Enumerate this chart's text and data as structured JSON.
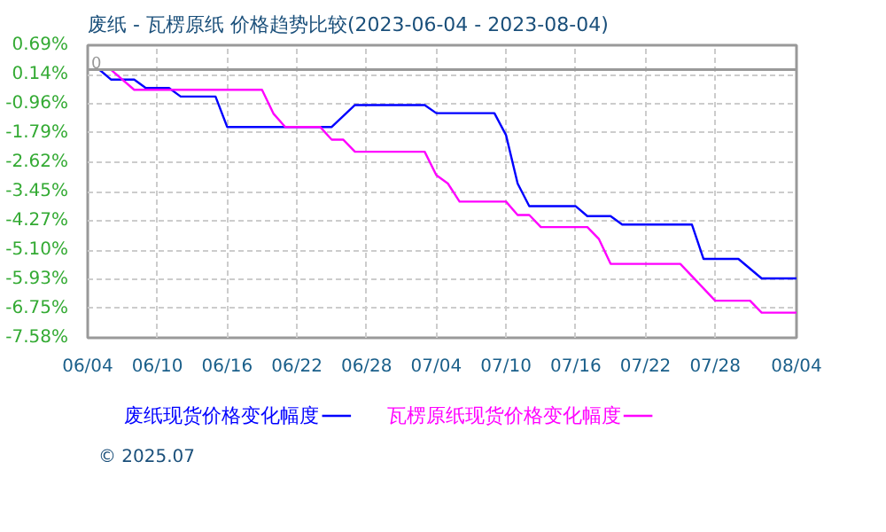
{
  "chart_data": {
    "type": "step",
    "title": "废纸 - 瓦楞原纸 价格趋势比较(2023-06-04 - 2023-08-04)",
    "xlim": [
      "2023-06-04",
      "2023-08-04"
    ],
    "xticks": [
      {
        "value": "2023-06-04",
        "label": "06/04"
      },
      {
        "value": "2023-06-10",
        "label": "06/10"
      },
      {
        "value": "2023-06-16",
        "label": "06/16"
      },
      {
        "value": "2023-06-22",
        "label": "06/22"
      },
      {
        "value": "2023-06-28",
        "label": "06/28"
      },
      {
        "value": "2023-07-04",
        "label": "07/04"
      },
      {
        "value": "2023-07-10",
        "label": "07/10"
      },
      {
        "value": "2023-07-16",
        "label": "07/16"
      },
      {
        "value": "2023-07-22",
        "label": "07/22"
      },
      {
        "value": "2023-07-28",
        "label": "07/28"
      },
      {
        "value": "2023-08-04",
        "label": "08/04"
      }
    ],
    "ylim": [
      -7.58,
      0.69
    ],
    "yticks": [
      {
        "value": 0.69,
        "label": "0.69%"
      },
      {
        "value": -0.14,
        "label": "0.14%"
      },
      {
        "value": -0.96,
        "label": "-0.96%"
      },
      {
        "value": -1.79,
        "label": "-1.79%"
      },
      {
        "value": -2.62,
        "label": "-2.62%"
      },
      {
        "value": -3.45,
        "label": "-3.45%"
      },
      {
        "value": -4.27,
        "label": "-4.27%"
      },
      {
        "value": -5.1,
        "label": "-5.10%"
      },
      {
        "value": -5.93,
        "label": "-5.93%"
      },
      {
        "value": -6.75,
        "label": "-6.75%"
      },
      {
        "value": -7.58,
        "label": "-7.58%"
      }
    ],
    "grid": true,
    "legend": "bottom",
    "line_style": "solid",
    "ref_lines": [
      {
        "axis": "y",
        "value": 0,
        "label": "0",
        "color": "#999999",
        "line_style": "solid"
      }
    ],
    "annotations": [
      "© 2025.07"
    ],
    "series": [
      {
        "name": "废纸现货价格变化幅度",
        "color": "#0000ff",
        "x": [
          "2023-06-04",
          "2023-06-05",
          "2023-06-06",
          "2023-06-08",
          "2023-06-09",
          "2023-06-11",
          "2023-06-12",
          "2023-06-15",
          "2023-06-16",
          "2023-06-25",
          "2023-06-27",
          "2023-07-03",
          "2023-07-04",
          "2023-07-09",
          "2023-07-10",
          "2023-07-11",
          "2023-07-12",
          "2023-07-16",
          "2023-07-17",
          "2023-07-19",
          "2023-07-20",
          "2023-07-26",
          "2023-07-27",
          "2023-07-30",
          "2023-08-01",
          "2023-08-04"
        ],
        "values": [
          0,
          0,
          -0.28,
          -0.28,
          -0.52,
          -0.52,
          -0.76,
          -0.76,
          -1.62,
          -1.62,
          -1.0,
          -1.0,
          -1.23,
          -1.23,
          -1.85,
          -3.22,
          -3.86,
          -3.86,
          -4.14,
          -4.14,
          -4.38,
          -4.38,
          -5.35,
          -5.35,
          -5.9,
          -5.9
        ]
      },
      {
        "name": "瓦楞原纸现货价格变化幅度",
        "color": "#ff00ff",
        "x": [
          "2023-06-04",
          "2023-06-06",
          "2023-06-08",
          "2023-06-19",
          "2023-06-20",
          "2023-06-21",
          "2023-06-24",
          "2023-06-25",
          "2023-06-26",
          "2023-06-27",
          "2023-07-03",
          "2023-07-04",
          "2023-07-05",
          "2023-07-06",
          "2023-07-10",
          "2023-07-11",
          "2023-07-12",
          "2023-07-13",
          "2023-07-17",
          "2023-07-18",
          "2023-07-19",
          "2023-07-25",
          "2023-07-28",
          "2023-07-31",
          "2023-08-01",
          "2023-08-04"
        ],
        "values": [
          0,
          0,
          -0.57,
          -0.57,
          -1.25,
          -1.62,
          -1.62,
          -1.98,
          -1.98,
          -2.32,
          -2.32,
          -2.98,
          -3.22,
          -3.73,
          -3.73,
          -4.11,
          -4.11,
          -4.45,
          -4.45,
          -4.79,
          -5.49,
          -5.49,
          -6.53,
          -6.53,
          -6.87,
          -6.87
        ]
      }
    ]
  }
}
